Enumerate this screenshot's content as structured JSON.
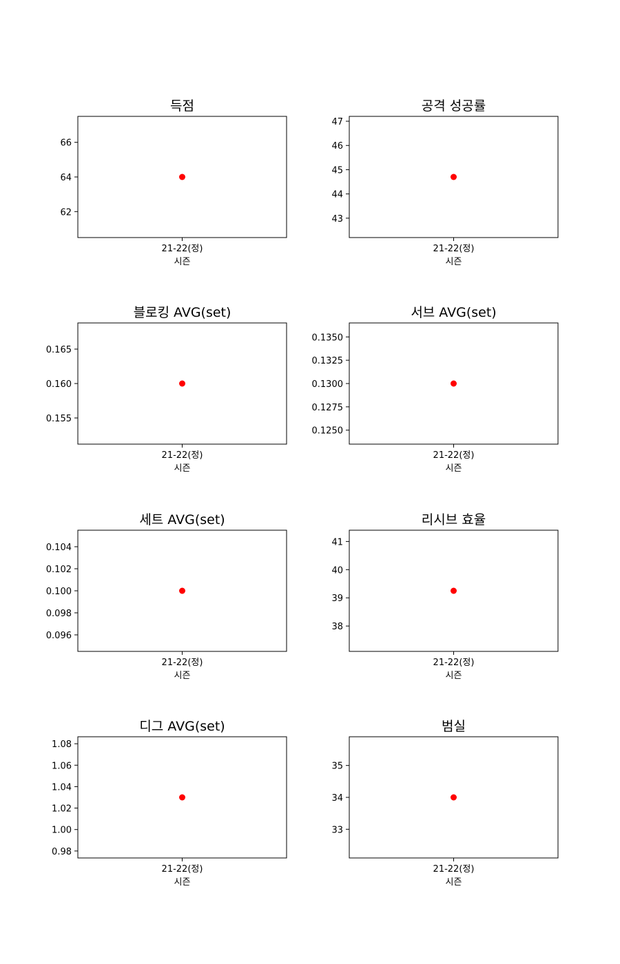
{
  "point_color": "#ff0000",
  "chart_data": [
    {
      "type": "scatter",
      "title": "득점",
      "xlabel": "시즌",
      "ylabel": "",
      "categories": [
        "21-22(정)"
      ],
      "values": [
        64
      ],
      "ylim": [
        60.5,
        67.5
      ],
      "yticks": [
        "62",
        "64",
        "66"
      ]
    },
    {
      "type": "scatter",
      "title": "공격 성공률",
      "xlabel": "시즌",
      "ylabel": "",
      "categories": [
        "21-22(정)"
      ],
      "values": [
        44.7
      ],
      "ylim": [
        42.2,
        47.2
      ],
      "yticks": [
        "43",
        "44",
        "45",
        "46",
        "47"
      ]
    },
    {
      "type": "scatter",
      "title": "블로킹 AVG(set)",
      "xlabel": "시즌",
      "ylabel": "",
      "categories": [
        "21-22(정)"
      ],
      "values": [
        0.16
      ],
      "ylim": [
        0.1512,
        0.1688
      ],
      "yticks": [
        "0.155",
        "0.160",
        "0.165"
      ]
    },
    {
      "type": "scatter",
      "title": "서브 AVG(set)",
      "xlabel": "시즌",
      "ylabel": "",
      "categories": [
        "21-22(정)"
      ],
      "values": [
        0.13
      ],
      "ylim": [
        0.1235,
        0.1365
      ],
      "yticks": [
        "0.1250",
        "0.1275",
        "0.1300",
        "0.1325",
        "0.1350"
      ]
    },
    {
      "type": "scatter",
      "title": "세트 AVG(set)",
      "xlabel": "시즌",
      "ylabel": "",
      "categories": [
        "21-22(정)"
      ],
      "values": [
        0.1
      ],
      "ylim": [
        0.0945,
        0.1055
      ],
      "yticks": [
        "0.096",
        "0.098",
        "0.100",
        "0.102",
        "0.104"
      ]
    },
    {
      "type": "scatter",
      "title": "리시브 효율",
      "xlabel": "시즌",
      "ylabel": "",
      "categories": [
        "21-22(정)"
      ],
      "values": [
        39.25
      ],
      "ylim": [
        37.1,
        41.4
      ],
      "yticks": [
        "38",
        "39",
        "40",
        "41"
      ]
    },
    {
      "type": "scatter",
      "title": "디그 AVG(set)",
      "xlabel": "시즌",
      "ylabel": "",
      "categories": [
        "21-22(정)"
      ],
      "values": [
        1.03
      ],
      "ylim": [
        0.9735,
        1.0865
      ],
      "yticks": [
        "0.98",
        "1.00",
        "1.02",
        "1.04",
        "1.06",
        "1.08"
      ]
    },
    {
      "type": "scatter",
      "title": "범실",
      "xlabel": "시즌",
      "ylabel": "",
      "categories": [
        "21-22(정)"
      ],
      "values": [
        34
      ],
      "ylim": [
        32.1,
        35.9
      ],
      "yticks": [
        "33",
        "34",
        "35"
      ]
    }
  ]
}
